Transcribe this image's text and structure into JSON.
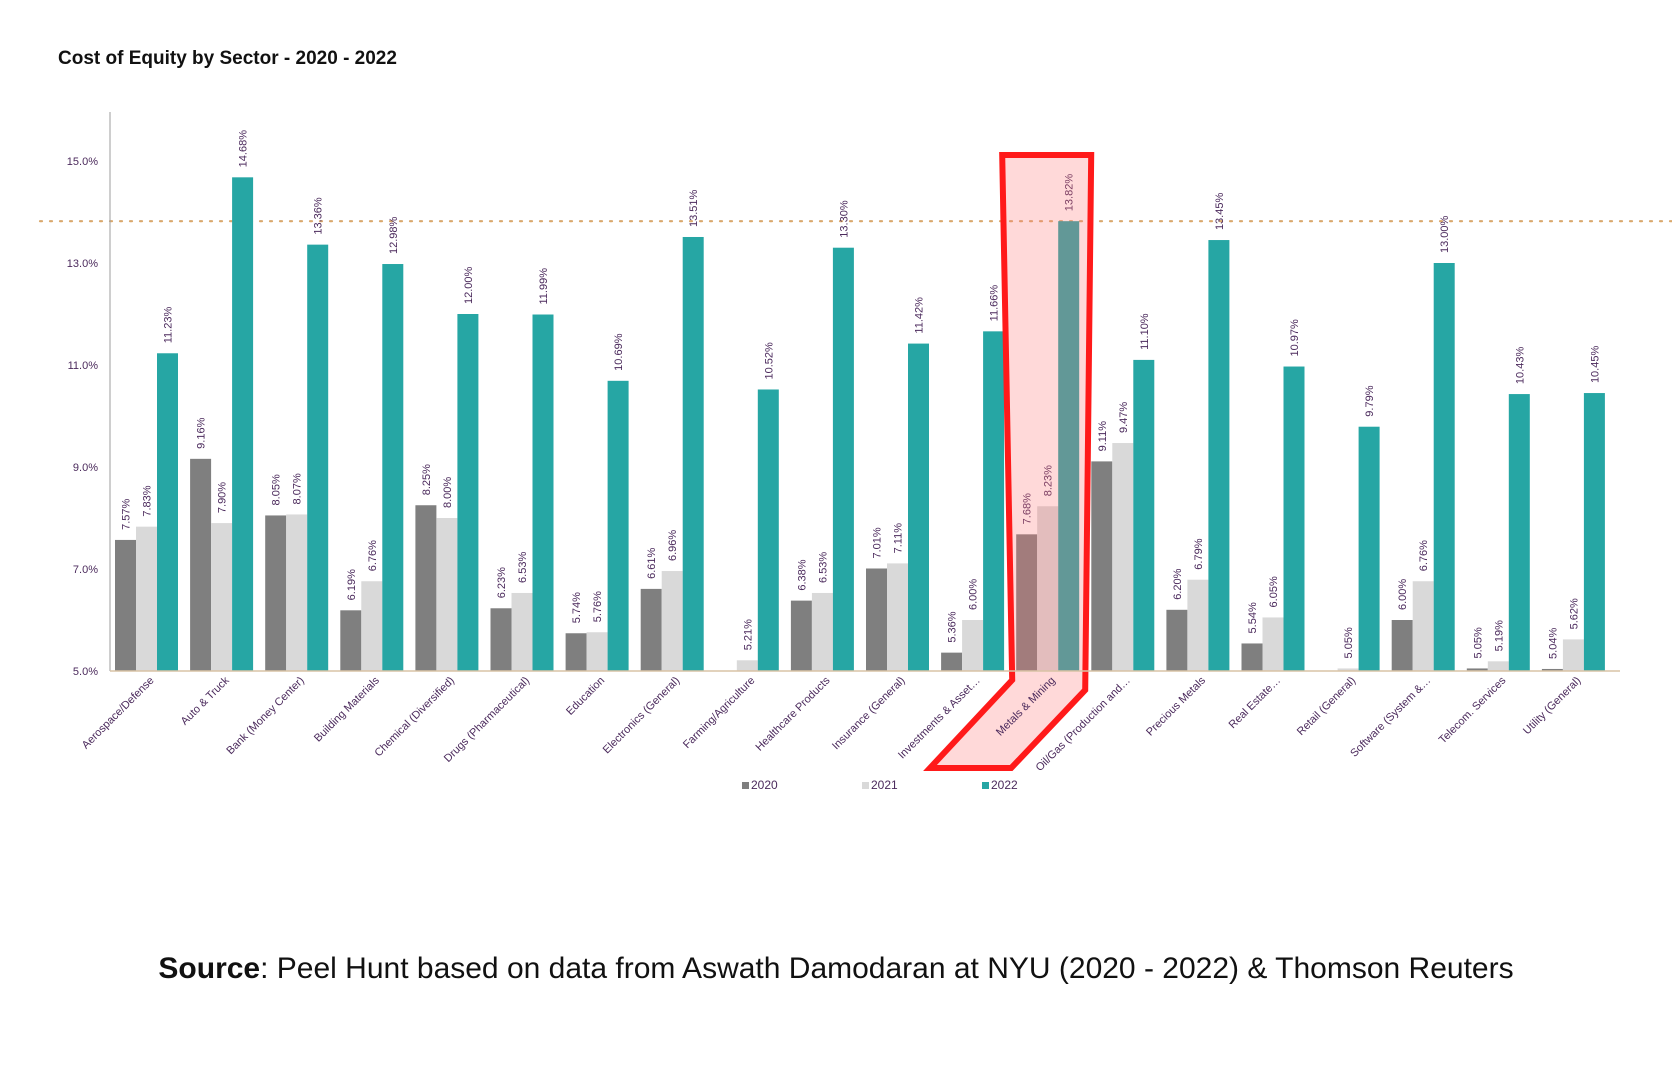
{
  "chart_data": {
    "type": "bar",
    "title": "Cost of Equity by Sector - 2020 - 2022",
    "xlabel": "",
    "ylabel": "",
    "ylim": [
      5.0,
      16.0
    ],
    "yticks": [
      5.0,
      7.0,
      9.0,
      11.0,
      13.0,
      15.0
    ],
    "ytick_labels": [
      "5.0%",
      "7.0%",
      "9.0%",
      "11.0%",
      "13.0%",
      "15.0%"
    ],
    "grid": false,
    "legend_position": "bottom",
    "reference_line": {
      "value": 13.82,
      "style": "dotted",
      "color": "#D9A86C"
    },
    "highlight": {
      "category": "Metals & Mining",
      "color": "#FF1A1A"
    },
    "categories": [
      "Aerospace/Defense",
      "Auto & Truck",
      "Bank (Money Center)",
      "Building Materials",
      "Chemical (Diversified)",
      "Drugs (Pharmaceutical)",
      "Education",
      "Electronics (General)",
      "Farming/Agriculture",
      "Healthcare Products",
      "Insurance (General)",
      "Investments & Asset…",
      "Metals & Mining",
      "Oil/Gas (Production and…",
      "Precious Metals",
      "Real Estate…",
      "Retail (General)",
      "Software (System &…",
      "Telecom. Services",
      "Utility (General)"
    ],
    "series": [
      {
        "name": "2020",
        "color": "#7F7F7F",
        "values": [
          7.57,
          9.16,
          8.05,
          6.19,
          8.25,
          6.23,
          5.74,
          6.61,
          null,
          6.38,
          7.01,
          5.36,
          7.68,
          9.11,
          6.2,
          5.54,
          null,
          6.0,
          5.05,
          5.04
        ],
        "labels": [
          "7.57%",
          "9.16%",
          "8.05%",
          "6.19%",
          "8.25%",
          "6.23%",
          "5.74%",
          "6.61%",
          "",
          "6.38%",
          "7.01%",
          "5.36%",
          "7.68%",
          "9.11%",
          "6.20%",
          "5.54%",
          "",
          "6.00%",
          "5.05%",
          "5.04%"
        ]
      },
      {
        "name": "2021",
        "color": "#D9D9D9",
        "values": [
          7.83,
          7.9,
          8.07,
          6.76,
          8.0,
          6.53,
          5.76,
          6.96,
          5.21,
          6.53,
          7.11,
          6.0,
          8.23,
          9.47,
          6.79,
          6.05,
          5.05,
          6.76,
          5.19,
          5.62
        ],
        "labels": [
          "7.83%",
          "7.90%",
          "8.07%",
          "6.76%",
          "8.00%",
          "6.53%",
          "5.76%",
          "6.96%",
          "5.21%",
          "6.53%",
          "7.11%",
          "6.00%",
          "8.23%",
          "9.47%",
          "6.79%",
          "6.05%",
          "5.05%",
          "6.76%",
          "5.19%",
          "5.62%"
        ]
      },
      {
        "name": "2022",
        "color": "#26A6A4",
        "values": [
          11.23,
          14.68,
          13.36,
          12.98,
          12.0,
          11.99,
          10.69,
          13.51,
          10.52,
          13.3,
          11.42,
          11.66,
          13.82,
          11.1,
          13.45,
          10.97,
          9.79,
          13.0,
          10.43,
          10.45
        ],
        "labels": [
          "11.23%",
          "14.68%",
          "13.36%",
          "12.98%",
          "12.00%",
          "11.99%",
          "10.69%",
          "13.51%",
          "10.52%",
          "13.30%",
          "11.42%",
          "11.66%",
          "13.82%",
          "11.10%",
          "13.45%",
          "10.97%",
          "9.79%",
          "13.00%",
          "10.43%",
          "10.45%"
        ]
      }
    ]
  },
  "source": {
    "label": "Source",
    "text": ": Peel Hunt based on data from Aswath Damodaran at NYU (2020 - 2022) & Thomson Reuters"
  },
  "colors": {
    "axis": "#9E9E9E",
    "tick_text": "#4B2A5C",
    "label_text": "#4B2A5C"
  }
}
